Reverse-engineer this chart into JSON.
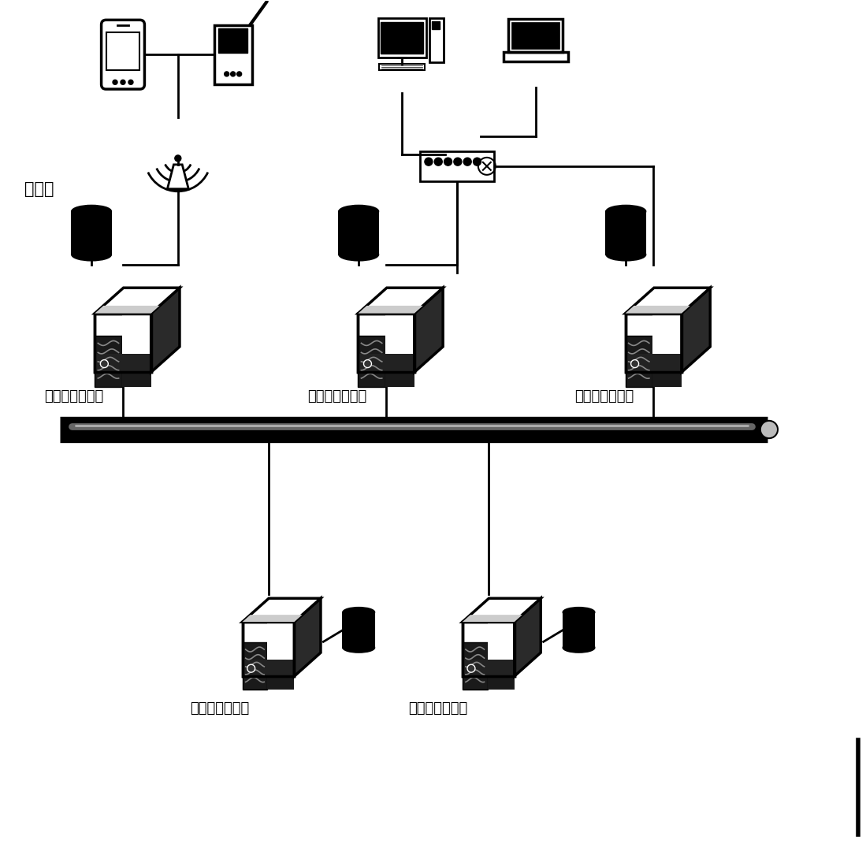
{
  "title": "",
  "bg_color": "#ffffff",
  "line_color": "#000000",
  "label_fontsize": 13,
  "label_font": "SimHei",
  "labels": {
    "db_label": "数据库",
    "sp1": "服务提供商成员",
    "sp2": "服务提供商成员",
    "sp3": "服务提供商成员",
    "sp4": "服务提供商成员",
    "sp5": "服务提供商成员"
  }
}
